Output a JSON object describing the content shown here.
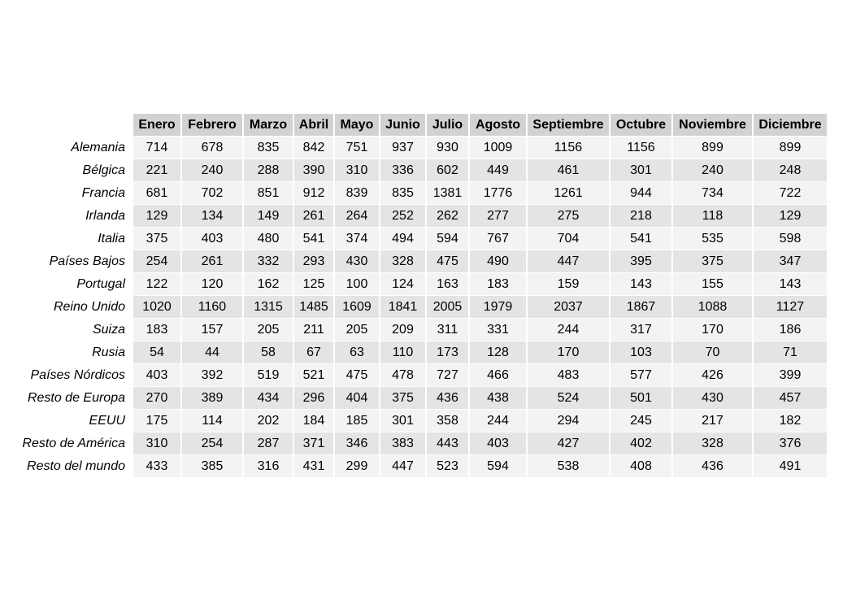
{
  "chart_data": {
    "type": "table",
    "columns": [
      "Enero",
      "Febrero",
      "Marzo",
      "Abril",
      "Mayo",
      "Junio",
      "Julio",
      "Agosto",
      "Septiembre",
      "Octubre",
      "Noviembre",
      "Diciembre"
    ],
    "rows": [
      {
        "label": "Alemania",
        "values": [
          714,
          678,
          835,
          842,
          751,
          937,
          930,
          1009,
          1156,
          1156,
          899,
          899
        ]
      },
      {
        "label": "Bélgica",
        "values": [
          221,
          240,
          288,
          390,
          310,
          336,
          602,
          449,
          461,
          301,
          240,
          248
        ]
      },
      {
        "label": "Francia",
        "values": [
          681,
          702,
          851,
          912,
          839,
          835,
          1381,
          1776,
          1261,
          944,
          734,
          722
        ]
      },
      {
        "label": "Irlanda",
        "values": [
          129,
          134,
          149,
          261,
          264,
          252,
          262,
          277,
          275,
          218,
          118,
          129
        ]
      },
      {
        "label": "Italia",
        "values": [
          375,
          403,
          480,
          541,
          374,
          494,
          594,
          767,
          704,
          541,
          535,
          598
        ]
      },
      {
        "label": "Países Bajos",
        "values": [
          254,
          261,
          332,
          293,
          430,
          328,
          475,
          490,
          447,
          395,
          375,
          347
        ]
      },
      {
        "label": "Portugal",
        "values": [
          122,
          120,
          162,
          125,
          100,
          124,
          163,
          183,
          159,
          143,
          155,
          143
        ]
      },
      {
        "label": "Reino Unido",
        "values": [
          1020,
          1160,
          1315,
          1485,
          1609,
          1841,
          2005,
          1979,
          2037,
          1867,
          1088,
          1127
        ]
      },
      {
        "label": "Suiza",
        "values": [
          183,
          157,
          205,
          211,
          205,
          209,
          311,
          331,
          244,
          317,
          170,
          186
        ]
      },
      {
        "label": "Rusia",
        "values": [
          54,
          44,
          58,
          67,
          63,
          110,
          173,
          128,
          170,
          103,
          70,
          71
        ]
      },
      {
        "label": "Países Nórdicos",
        "values": [
          403,
          392,
          519,
          521,
          475,
          478,
          727,
          466,
          483,
          577,
          426,
          399
        ]
      },
      {
        "label": "Resto de Europa",
        "values": [
          270,
          389,
          434,
          296,
          404,
          375,
          436,
          438,
          524,
          501,
          430,
          457
        ]
      },
      {
        "label": "EEUU",
        "values": [
          175,
          114,
          202,
          184,
          185,
          301,
          358,
          244,
          294,
          245,
          217,
          182
        ]
      },
      {
        "label": "Resto de América",
        "values": [
          310,
          254,
          287,
          371,
          346,
          383,
          443,
          403,
          427,
          402,
          328,
          376
        ]
      },
      {
        "label": "Resto del mundo",
        "values": [
          433,
          385,
          316,
          431,
          299,
          447,
          523,
          594,
          538,
          408,
          436,
          491
        ]
      }
    ]
  }
}
